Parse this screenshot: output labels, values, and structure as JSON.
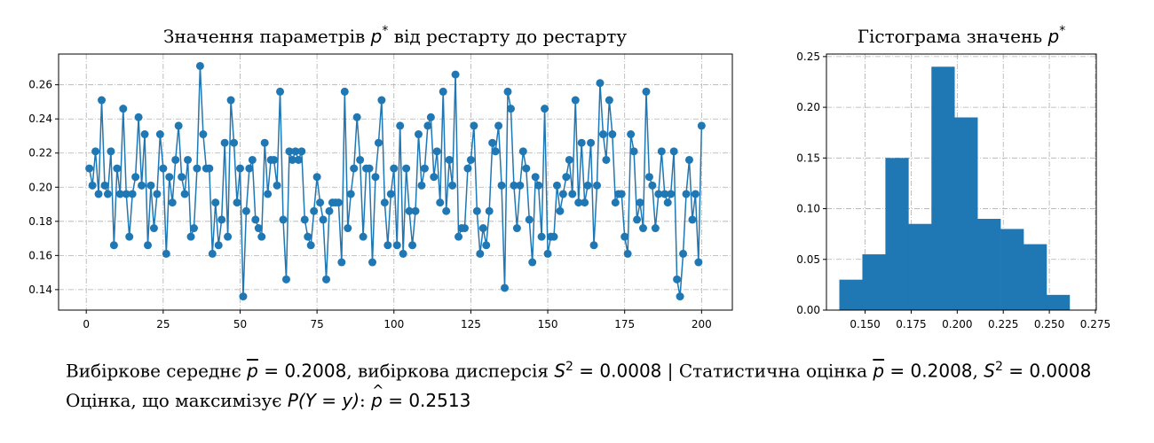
{
  "colors": {
    "series": "#1f77b4",
    "grid": "#b0b0b0",
    "axis": "#000000"
  },
  "chart_data": [
    {
      "type": "line",
      "title": "Значення параметрів p* від рестарту до рестарту",
      "title_text": "Значення параметрів ",
      "title_symbol": "p",
      "title_sup": "*",
      "title_rest": " від рестарту до рестарту",
      "xlabel": "",
      "ylabel": "",
      "xlim": [
        -9,
        210
      ],
      "ylim": [
        0.128,
        0.278
      ],
      "xticks": [
        0,
        25,
        50,
        75,
        100,
        125,
        150,
        175,
        200
      ],
      "yticks": [
        0.14,
        0.16,
        0.18,
        0.2,
        0.22,
        0.24,
        0.26
      ],
      "grid": true,
      "marker": "circle",
      "series": [
        {
          "x_start": 1,
          "values": [
            0.211,
            0.201,
            0.221,
            0.196,
            0.251,
            0.201,
            0.196,
            0.221,
            0.166,
            0.211,
            0.196,
            0.246,
            0.196,
            0.171,
            0.196,
            0.206,
            0.241,
            0.201,
            0.231,
            0.166,
            0.201,
            0.176,
            0.196,
            0.231,
            0.211,
            0.161,
            0.206,
            0.191,
            0.216,
            0.236,
            0.206,
            0.196,
            0.216,
            0.171,
            0.176,
            0.211,
            0.271,
            0.231,
            0.211,
            0.211,
            0.161,
            0.191,
            0.166,
            0.181,
            0.226,
            0.171,
            0.251,
            0.226,
            0.191,
            0.211,
            0.136,
            0.186,
            0.211,
            0.216,
            0.181,
            0.176,
            0.171,
            0.226,
            0.196,
            0.216,
            0.216,
            0.201,
            0.256,
            0.181,
            0.146,
            0.221,
            0.216,
            0.221,
            0.216,
            0.221,
            0.181,
            0.171,
            0.166,
            0.186,
            0.206,
            0.191,
            0.181,
            0.146,
            0.186,
            0.191,
            0.191,
            0.191,
            0.156,
            0.256,
            0.176,
            0.196,
            0.211,
            0.241,
            0.216,
            0.171,
            0.211,
            0.211,
            0.156,
            0.206,
            0.226,
            0.251,
            0.191,
            0.166,
            0.196,
            0.211,
            0.166,
            0.236,
            0.161,
            0.211,
            0.186,
            0.166,
            0.186,
            0.231,
            0.201,
            0.211,
            0.236,
            0.241,
            0.206,
            0.221,
            0.191,
            0.256,
            0.186,
            0.216,
            0.201,
            0.266,
            0.171,
            0.176,
            0.176,
            0.211,
            0.216,
            0.236,
            0.186,
            0.161,
            0.176,
            0.166,
            0.186,
            0.226,
            0.221,
            0.236,
            0.201,
            0.141,
            0.256,
            0.246,
            0.201,
            0.176,
            0.201,
            0.221,
            0.211,
            0.181,
            0.156,
            0.206,
            0.201,
            0.171,
            0.246,
            0.161,
            0.171,
            0.171,
            0.201,
            0.186,
            0.196,
            0.206,
            0.216,
            0.196,
            0.251,
            0.191,
            0.226,
            0.191,
            0.201,
            0.226,
            0.166,
            0.201,
            0.261,
            0.231,
            0.216,
            0.251,
            0.231,
            0.191,
            0.196,
            0.196,
            0.171,
            0.161,
            0.231,
            0.221,
            0.181,
            0.191,
            0.176,
            0.256,
            0.206,
            0.201,
            0.176,
            0.196,
            0.221,
            0.196,
            0.191,
            0.196,
            0.221,
            0.146,
            0.136,
            0.161,
            0.196,
            0.216,
            0.181,
            0.196,
            0.156,
            0.236
          ]
        }
      ]
    },
    {
      "type": "bar",
      "title": "Гістограма значень p*",
      "title_text": "Гістограма значень ",
      "title_symbol": "p",
      "title_sup": "*",
      "xlabel": "",
      "ylabel": "",
      "xlim": [
        0.129,
        0.2755
      ],
      "ylim": [
        0,
        0.2525
      ],
      "xticks": [
        0.15,
        0.175,
        0.2,
        0.225,
        0.25,
        0.275
      ],
      "yticks": [
        0.0,
        0.05,
        0.1,
        0.15,
        0.2,
        0.25
      ],
      "grid": true,
      "bins": [
        {
          "from": 0.136,
          "to": 0.1485,
          "value": 0.03
        },
        {
          "from": 0.1485,
          "to": 0.161,
          "value": 0.055
        },
        {
          "from": 0.161,
          "to": 0.1735,
          "value": 0.15
        },
        {
          "from": 0.1735,
          "to": 0.186,
          "value": 0.085
        },
        {
          "from": 0.186,
          "to": 0.1985,
          "value": 0.24
        },
        {
          "from": 0.1985,
          "to": 0.211,
          "value": 0.19
        },
        {
          "from": 0.211,
          "to": 0.2235,
          "value": 0.09
        },
        {
          "from": 0.2235,
          "to": 0.236,
          "value": 0.08
        },
        {
          "from": 0.236,
          "to": 0.2485,
          "value": 0.065
        },
        {
          "from": 0.2485,
          "to": 0.261,
          "value": 0.015
        }
      ]
    }
  ],
  "footer": {
    "line1": {
      "t1": "Вибіркове середнє ",
      "pbar": "p",
      "eq1": " = 0.2008",
      "t2": ", вибіркова дисперсія ",
      "s": "S",
      "sq": "2",
      "eq2": " = 0.0008",
      "t3": " | Статистична оцінка ",
      "pbar2": "p",
      "eq3": " = 0.2008",
      "t4": ", ",
      "s2": "S",
      "sq2": "2",
      "eq4": " = 0.0008"
    },
    "line2": {
      "t1": "Оцінка, що максимізує ",
      "expr": "P(Y = y)",
      "colon": ": ",
      "phat": "p",
      "eq": " = 0.2513"
    }
  }
}
